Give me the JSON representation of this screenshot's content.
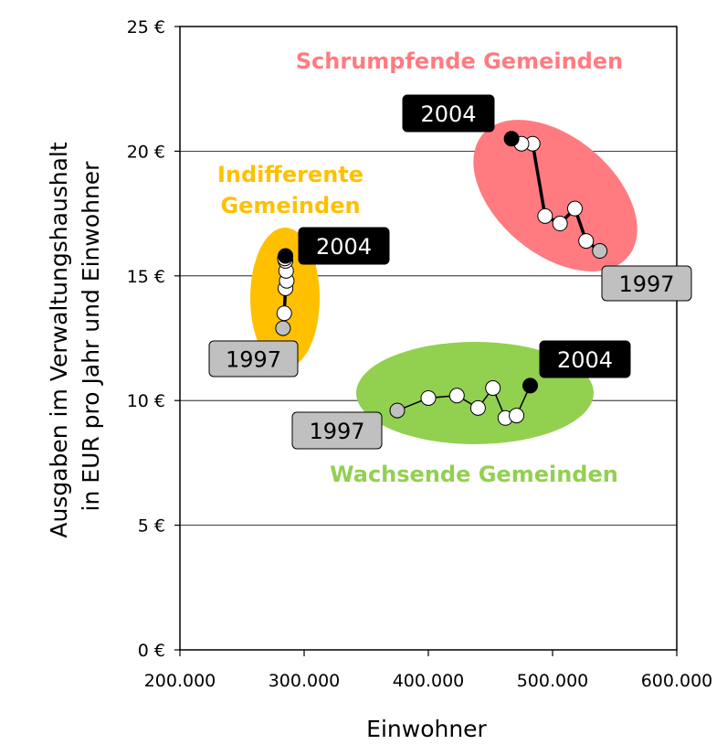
{
  "chart_data": {
    "type": "scatter",
    "title": "",
    "xlabel": "Einwohner",
    "ylabel_lines": [
      "Ausgaben im Verwaltungshaushalt",
      "in EUR pro Jahr und Einwohner"
    ],
    "xlim": [
      200000,
      600000
    ],
    "ylim": [
      0,
      25
    ],
    "x_ticks": [
      200000,
      300000,
      400000,
      500000,
      600000
    ],
    "x_tick_labels": [
      "200.000",
      "300.000",
      "400.000",
      "500.000",
      "600.000"
    ],
    "y_ticks": [
      0,
      5,
      10,
      15,
      20,
      25
    ],
    "y_tick_labels": [
      "0 €",
      "5 €",
      "10 €",
      "15 €",
      "20 €",
      "25 €"
    ],
    "grid": "horizontal",
    "series": [
      {
        "key": "schrumpfend",
        "name": "Schrumpfende Gemeinden",
        "color": "#ff7b80",
        "label_color": "#ff7b80",
        "points": [
          [
            538000,
            16.0
          ],
          [
            527000,
            16.4
          ],
          [
            518000,
            17.7
          ],
          [
            506000,
            17.1
          ],
          [
            494000,
            17.4
          ],
          [
            484000,
            20.3
          ],
          [
            475000,
            20.3
          ],
          [
            467000,
            20.5
          ]
        ],
        "start_label": "1997",
        "end_label": "2004"
      },
      {
        "key": "indifferent",
        "name": "Indifferente Gemeinden",
        "color": "#ffc000",
        "label_color": "#ffc000",
        "points": [
          [
            283000,
            12.9
          ],
          [
            284000,
            13.5
          ],
          [
            285000,
            14.5
          ],
          [
            286000,
            14.8
          ],
          [
            285500,
            15.2
          ],
          [
            285000,
            15.6
          ],
          [
            284500,
            15.7
          ],
          [
            285000,
            15.8
          ]
        ],
        "start_label": "1997",
        "end_label": "2004"
      },
      {
        "key": "wachsend",
        "name": "Wachsende Gemeinden",
        "color": "#92d050",
        "label_color": "#92d050",
        "points": [
          [
            375000,
            9.6
          ],
          [
            400000,
            10.1
          ],
          [
            423000,
            10.2
          ],
          [
            440000,
            9.7
          ],
          [
            452000,
            10.5
          ],
          [
            462000,
            9.3
          ],
          [
            471000,
            9.4
          ],
          [
            482000,
            10.6
          ]
        ],
        "start_label": "1997",
        "end_label": "2004"
      }
    ]
  }
}
